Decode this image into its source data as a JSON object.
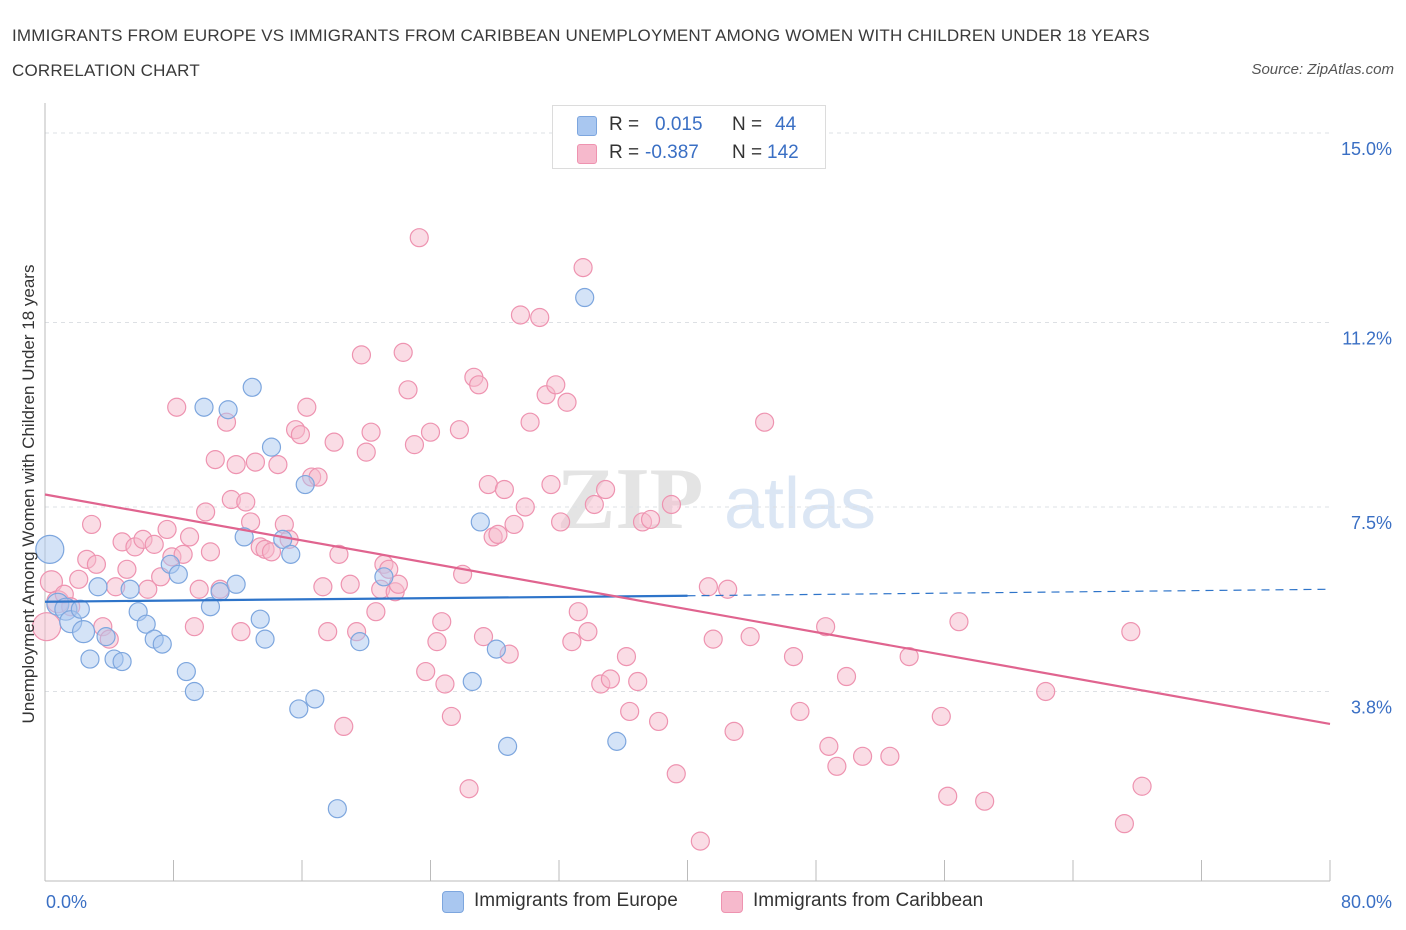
{
  "title": "IMMIGRANTS FROM EUROPE VS IMMIGRANTS FROM CARIBBEAN UNEMPLOYMENT AMONG WOMEN WITH CHILDREN UNDER 18 YEARS CORRELATION CHART",
  "source": "Source: ZipAtlas.com",
  "watermark": {
    "zip": "ZIP",
    "atlas": "atlas"
  },
  "colors": {
    "europe_fill": "#a9c7f0",
    "europe_stroke": "#7da6de",
    "europe_line": "#2e74c9",
    "caribbean_fill": "#f6b9cc",
    "caribbean_stroke": "#ee93b0",
    "caribbean_line": "#e0648f",
    "axis_value": "#3a6fc4",
    "grid": "#dde0e4"
  },
  "legend": {
    "rows": [
      {
        "series": "europe",
        "r_label": "R =",
        "r_value": "0.015",
        "n_label": "N =",
        "n_value": "44"
      },
      {
        "series": "caribbean",
        "r_label": "R =",
        "r_value": "-0.387",
        "n_label": "N =",
        "n_value": "142"
      }
    ]
  },
  "chart_data": {
    "type": "scatter",
    "title": "IMMIGRANTS FROM EUROPE VS IMMIGRANTS FROM CARIBBEAN UNEMPLOYMENT AMONG WOMEN WITH CHILDREN UNDER 18 YEARS CORRELATION CHART",
    "xlabel": "",
    "ylabel": "Unemployment Among Women with Children Under 18 years",
    "xlim": [
      0,
      80
    ],
    "ylim": [
      0,
      15.3
    ],
    "x_tick_labels": [
      "0.0%",
      "80.0%"
    ],
    "y_ticks": [
      3.8,
      7.5,
      11.2,
      15.0
    ],
    "y_tick_labels": [
      "3.8%",
      "7.5%",
      "11.2%",
      "15.0%"
    ],
    "grid": true,
    "legend_position": "top-center",
    "series": [
      {
        "name": "Immigrants from Europe",
        "r": 0.015,
        "n": 44,
        "trend": {
          "x": [
            0,
            40
          ],
          "y": [
            5.6,
            5.72
          ],
          "dashed_to": [
            80,
            5.85
          ]
        },
        "points": [
          {
            "x": 0.3,
            "y": 6.65,
            "s": 3
          },
          {
            "x": 0.8,
            "y": 5.55,
            "s": 2
          },
          {
            "x": 1.3,
            "y": 5.45,
            "s": 2
          },
          {
            "x": 1.6,
            "y": 5.2,
            "s": 2
          },
          {
            "x": 2.2,
            "y": 5.45,
            "s": 1
          },
          {
            "x": 2.4,
            "y": 5.0,
            "s": 2
          },
          {
            "x": 2.8,
            "y": 4.45,
            "s": 1
          },
          {
            "x": 3.3,
            "y": 5.9,
            "s": 1
          },
          {
            "x": 3.8,
            "y": 4.9,
            "s": 1
          },
          {
            "x": 4.3,
            "y": 4.45,
            "s": 1
          },
          {
            "x": 4.8,
            "y": 4.4,
            "s": 1
          },
          {
            "x": 5.3,
            "y": 5.85,
            "s": 1
          },
          {
            "x": 5.8,
            "y": 5.4,
            "s": 1
          },
          {
            "x": 6.3,
            "y": 5.15,
            "s": 1
          },
          {
            "x": 6.8,
            "y": 4.85,
            "s": 1
          },
          {
            "x": 7.3,
            "y": 4.75,
            "s": 1
          },
          {
            "x": 7.8,
            "y": 6.35,
            "s": 1
          },
          {
            "x": 8.3,
            "y": 6.15,
            "s": 1
          },
          {
            "x": 8.8,
            "y": 4.2,
            "s": 1
          },
          {
            "x": 9.3,
            "y": 3.8,
            "s": 1
          },
          {
            "x": 9.9,
            "y": 9.5,
            "s": 1
          },
          {
            "x": 10.3,
            "y": 5.5,
            "s": 1
          },
          {
            "x": 10.9,
            "y": 5.8,
            "s": 1
          },
          {
            "x": 11.4,
            "y": 9.45,
            "s": 1
          },
          {
            "x": 11.9,
            "y": 5.95,
            "s": 1
          },
          {
            "x": 12.4,
            "y": 6.9,
            "s": 1
          },
          {
            "x": 12.9,
            "y": 9.9,
            "s": 1
          },
          {
            "x": 13.4,
            "y": 5.25,
            "s": 1
          },
          {
            "x": 13.7,
            "y": 4.85,
            "s": 1
          },
          {
            "x": 14.1,
            "y": 8.7,
            "s": 1
          },
          {
            "x": 14.8,
            "y": 6.85,
            "s": 1
          },
          {
            "x": 15.3,
            "y": 6.55,
            "s": 1
          },
          {
            "x": 15.8,
            "y": 3.45,
            "s": 1
          },
          {
            "x": 16.2,
            "y": 7.95,
            "s": 1
          },
          {
            "x": 16.8,
            "y": 3.65,
            "s": 1
          },
          {
            "x": 18.2,
            "y": 1.45,
            "s": 1
          },
          {
            "x": 19.6,
            "y": 4.8,
            "s": 1
          },
          {
            "x": 21.1,
            "y": 6.1,
            "s": 1
          },
          {
            "x": 26.6,
            "y": 4.0,
            "s": 1
          },
          {
            "x": 27.1,
            "y": 7.2,
            "s": 1
          },
          {
            "x": 28.1,
            "y": 4.65,
            "s": 1
          },
          {
            "x": 28.8,
            "y": 2.7,
            "s": 1
          },
          {
            "x": 33.6,
            "y": 11.7,
            "s": 1
          },
          {
            "x": 35.6,
            "y": 2.8,
            "s": 1
          }
        ]
      },
      {
        "name": "Immigrants from Caribbean",
        "r": -0.387,
        "n": 142,
        "trend": {
          "x": [
            0,
            80
          ],
          "y": [
            7.75,
            3.15
          ]
        },
        "points": [
          {
            "x": 0.1,
            "y": 5.1,
            "s": 3
          },
          {
            "x": 0.4,
            "y": 6.0,
            "s": 2
          },
          {
            "x": 0.8,
            "y": 5.6,
            "s": 2
          },
          {
            "x": 1.2,
            "y": 5.75,
            "s": 1
          },
          {
            "x": 1.6,
            "y": 5.5,
            "s": 1
          },
          {
            "x": 2.1,
            "y": 6.05,
            "s": 1
          },
          {
            "x": 2.6,
            "y": 6.45,
            "s": 1
          },
          {
            "x": 2.9,
            "y": 7.15,
            "s": 1
          },
          {
            "x": 3.2,
            "y": 6.35,
            "s": 1
          },
          {
            "x": 3.6,
            "y": 5.1,
            "s": 1
          },
          {
            "x": 4.0,
            "y": 4.85,
            "s": 1
          },
          {
            "x": 4.4,
            "y": 5.9,
            "s": 1
          },
          {
            "x": 4.8,
            "y": 6.8,
            "s": 1
          },
          {
            "x": 5.1,
            "y": 6.25,
            "s": 1
          },
          {
            "x": 5.6,
            "y": 6.7,
            "s": 1
          },
          {
            "x": 6.1,
            "y": 6.85,
            "s": 1
          },
          {
            "x": 6.4,
            "y": 5.85,
            "s": 1
          },
          {
            "x": 6.8,
            "y": 6.75,
            "s": 1
          },
          {
            "x": 7.2,
            "y": 6.1,
            "s": 1
          },
          {
            "x": 7.6,
            "y": 7.05,
            "s": 1
          },
          {
            "x": 7.9,
            "y": 6.5,
            "s": 1
          },
          {
            "x": 8.2,
            "y": 9.5,
            "s": 1
          },
          {
            "x": 8.6,
            "y": 6.55,
            "s": 1
          },
          {
            "x": 9.0,
            "y": 6.9,
            "s": 1
          },
          {
            "x": 9.3,
            "y": 5.1,
            "s": 1
          },
          {
            "x": 9.6,
            "y": 5.85,
            "s": 1
          },
          {
            "x": 10.0,
            "y": 7.4,
            "s": 1
          },
          {
            "x": 10.3,
            "y": 6.6,
            "s": 1
          },
          {
            "x": 10.6,
            "y": 8.45,
            "s": 1
          },
          {
            "x": 10.9,
            "y": 5.85,
            "s": 1
          },
          {
            "x": 11.3,
            "y": 9.2,
            "s": 1
          },
          {
            "x": 11.6,
            "y": 7.65,
            "s": 1
          },
          {
            "x": 11.9,
            "y": 8.35,
            "s": 1
          },
          {
            "x": 12.2,
            "y": 5.0,
            "s": 1
          },
          {
            "x": 12.5,
            "y": 7.6,
            "s": 1
          },
          {
            "x": 12.8,
            "y": 7.2,
            "s": 1
          },
          {
            "x": 13.1,
            "y": 8.4,
            "s": 1
          },
          {
            "x": 13.4,
            "y": 6.7,
            "s": 1
          },
          {
            "x": 13.7,
            "y": 6.65,
            "s": 1
          },
          {
            "x": 14.1,
            "y": 6.6,
            "s": 1
          },
          {
            "x": 14.5,
            "y": 8.35,
            "s": 1
          },
          {
            "x": 14.9,
            "y": 7.15,
            "s": 1
          },
          {
            "x": 15.2,
            "y": 6.85,
            "s": 1
          },
          {
            "x": 15.6,
            "y": 9.05,
            "s": 1
          },
          {
            "x": 15.9,
            "y": 8.95,
            "s": 1
          },
          {
            "x": 16.3,
            "y": 9.5,
            "s": 1
          },
          {
            "x": 16.6,
            "y": 8.1,
            "s": 1
          },
          {
            "x": 17.0,
            "y": 8.1,
            "s": 1
          },
          {
            "x": 17.3,
            "y": 5.9,
            "s": 1
          },
          {
            "x": 17.6,
            "y": 5.0,
            "s": 1
          },
          {
            "x": 18.0,
            "y": 8.8,
            "s": 1
          },
          {
            "x": 18.3,
            "y": 6.55,
            "s": 1
          },
          {
            "x": 18.6,
            "y": 3.1,
            "s": 1
          },
          {
            "x": 19.0,
            "y": 5.95,
            "s": 1
          },
          {
            "x": 19.4,
            "y": 5.0,
            "s": 1
          },
          {
            "x": 19.7,
            "y": 10.55,
            "s": 1
          },
          {
            "x": 20.0,
            "y": 8.6,
            "s": 1
          },
          {
            "x": 20.3,
            "y": 9.0,
            "s": 1
          },
          {
            "x": 20.6,
            "y": 5.4,
            "s": 1
          },
          {
            "x": 20.9,
            "y": 5.85,
            "s": 1
          },
          {
            "x": 21.1,
            "y": 6.35,
            "s": 1
          },
          {
            "x": 21.4,
            "y": 6.25,
            "s": 1
          },
          {
            "x": 21.8,
            "y": 5.8,
            "s": 1
          },
          {
            "x": 22.0,
            "y": 5.95,
            "s": 1
          },
          {
            "x": 22.3,
            "y": 10.6,
            "s": 1
          },
          {
            "x": 22.6,
            "y": 9.85,
            "s": 1
          },
          {
            "x": 23.0,
            "y": 8.75,
            "s": 1
          },
          {
            "x": 23.3,
            "y": 12.9,
            "s": 1
          },
          {
            "x": 23.7,
            "y": 4.2,
            "s": 1
          },
          {
            "x": 24.0,
            "y": 9.0,
            "s": 1
          },
          {
            "x": 24.4,
            "y": 4.8,
            "s": 1
          },
          {
            "x": 24.7,
            "y": 5.2,
            "s": 1
          },
          {
            "x": 24.9,
            "y": 3.95,
            "s": 1
          },
          {
            "x": 25.3,
            "y": 3.3,
            "s": 1
          },
          {
            "x": 25.8,
            "y": 9.05,
            "s": 1
          },
          {
            "x": 26.0,
            "y": 6.15,
            "s": 1
          },
          {
            "x": 26.4,
            "y": 1.85,
            "s": 1
          },
          {
            "x": 26.7,
            "y": 10.1,
            "s": 1
          },
          {
            "x": 27.0,
            "y": 9.95,
            "s": 1
          },
          {
            "x": 27.3,
            "y": 4.9,
            "s": 1
          },
          {
            "x": 27.6,
            "y": 7.95,
            "s": 1
          },
          {
            "x": 27.9,
            "y": 6.9,
            "s": 1
          },
          {
            "x": 28.2,
            "y": 6.95,
            "s": 1
          },
          {
            "x": 28.6,
            "y": 7.85,
            "s": 1
          },
          {
            "x": 28.9,
            "y": 4.55,
            "s": 1
          },
          {
            "x": 29.2,
            "y": 7.15,
            "s": 1
          },
          {
            "x": 29.6,
            "y": 11.35,
            "s": 1
          },
          {
            "x": 29.9,
            "y": 7.5,
            "s": 1
          },
          {
            "x": 30.2,
            "y": 9.2,
            "s": 1
          },
          {
            "x": 30.8,
            "y": 11.3,
            "s": 1
          },
          {
            "x": 31.2,
            "y": 9.75,
            "s": 1
          },
          {
            "x": 31.5,
            "y": 7.95,
            "s": 1
          },
          {
            "x": 31.8,
            "y": 9.95,
            "s": 1
          },
          {
            "x": 32.1,
            "y": 7.2,
            "s": 1
          },
          {
            "x": 32.5,
            "y": 9.6,
            "s": 1
          },
          {
            "x": 32.8,
            "y": 4.8,
            "s": 1
          },
          {
            "x": 33.2,
            "y": 5.4,
            "s": 1
          },
          {
            "x": 33.5,
            "y": 12.3,
            "s": 1
          },
          {
            "x": 33.8,
            "y": 5.0,
            "s": 1
          },
          {
            "x": 34.2,
            "y": 7.55,
            "s": 1
          },
          {
            "x": 34.6,
            "y": 3.95,
            "s": 1
          },
          {
            "x": 34.9,
            "y": 7.85,
            "s": 1
          },
          {
            "x": 35.2,
            "y": 4.05,
            "s": 1
          },
          {
            "x": 36.2,
            "y": 4.5,
            "s": 1
          },
          {
            "x": 36.4,
            "y": 3.4,
            "s": 1
          },
          {
            "x": 36.9,
            "y": 4.0,
            "s": 1
          },
          {
            "x": 37.2,
            "y": 7.2,
            "s": 1
          },
          {
            "x": 37.7,
            "y": 7.25,
            "s": 1
          },
          {
            "x": 38.2,
            "y": 3.2,
            "s": 1
          },
          {
            "x": 39.0,
            "y": 7.55,
            "s": 1
          },
          {
            "x": 39.3,
            "y": 2.15,
            "s": 1
          },
          {
            "x": 40.8,
            "y": 0.8,
            "s": 1
          },
          {
            "x": 41.3,
            "y": 5.9,
            "s": 1
          },
          {
            "x": 41.6,
            "y": 4.85,
            "s": 1
          },
          {
            "x": 42.5,
            "y": 5.85,
            "s": 1
          },
          {
            "x": 42.9,
            "y": 3.0,
            "s": 1
          },
          {
            "x": 43.9,
            "y": 4.9,
            "s": 1
          },
          {
            "x": 44.8,
            "y": 9.2,
            "s": 1
          },
          {
            "x": 46.6,
            "y": 4.5,
            "s": 1
          },
          {
            "x": 47.0,
            "y": 3.4,
            "s": 1
          },
          {
            "x": 48.6,
            "y": 5.1,
            "s": 1
          },
          {
            "x": 48.8,
            "y": 2.7,
            "s": 1
          },
          {
            "x": 49.3,
            "y": 2.3,
            "s": 1
          },
          {
            "x": 49.9,
            "y": 4.1,
            "s": 1
          },
          {
            "x": 50.9,
            "y": 2.5,
            "s": 1
          },
          {
            "x": 52.6,
            "y": 2.5,
            "s": 1
          },
          {
            "x": 53.8,
            "y": 4.5,
            "s": 1
          },
          {
            "x": 55.8,
            "y": 3.3,
            "s": 1
          },
          {
            "x": 56.2,
            "y": 1.7,
            "s": 1
          },
          {
            "x": 56.9,
            "y": 5.2,
            "s": 1
          },
          {
            "x": 58.5,
            "y": 1.6,
            "s": 1
          },
          {
            "x": 62.3,
            "y": 3.8,
            "s": 1
          },
          {
            "x": 67.2,
            "y": 1.15,
            "s": 1
          },
          {
            "x": 67.6,
            "y": 5.0,
            "s": 1
          },
          {
            "x": 68.3,
            "y": 1.9,
            "s": 1
          }
        ]
      }
    ]
  },
  "bottom_legend": [
    {
      "series": "europe",
      "label": "Immigrants from Europe"
    },
    {
      "series": "caribbean",
      "label": "Immigrants from Caribbean"
    }
  ]
}
